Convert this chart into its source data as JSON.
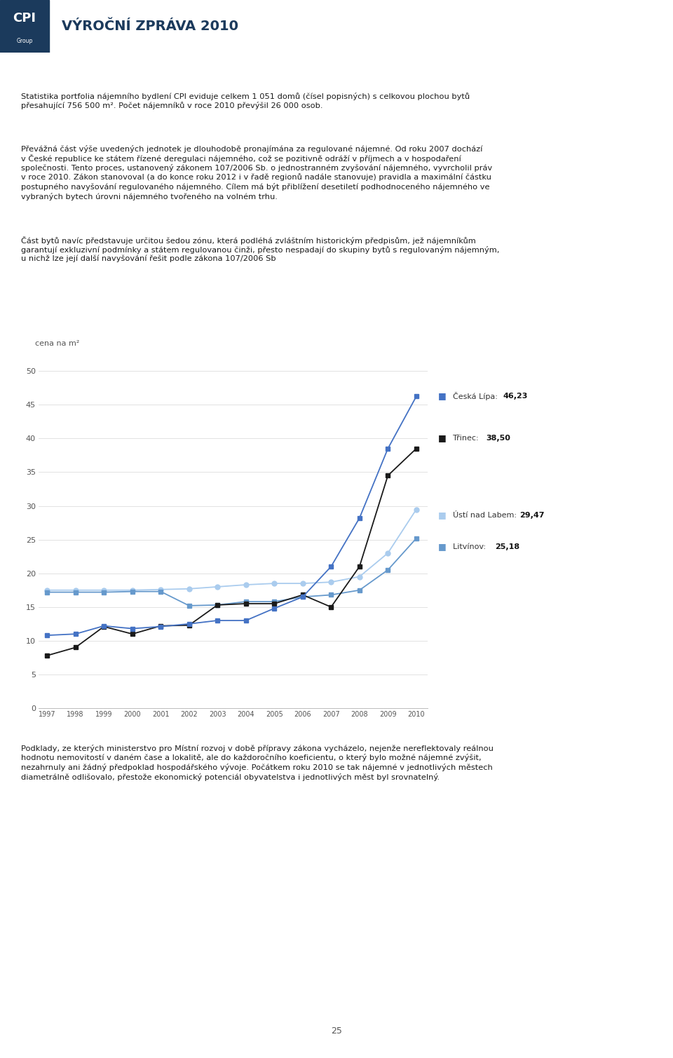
{
  "years": [
    1997,
    1998,
    1999,
    2000,
    2001,
    2002,
    2003,
    2004,
    2005,
    2006,
    2007,
    2008,
    2009,
    2010
  ],
  "ceska_lipa": [
    10.8,
    11.0,
    12.2,
    11.8,
    12.1,
    12.5,
    13.0,
    13.0,
    14.8,
    16.5,
    21.0,
    28.2,
    38.5,
    46.23
  ],
  "trinec": [
    7.8,
    9.0,
    12.1,
    11.0,
    12.2,
    12.3,
    15.3,
    15.5,
    15.5,
    16.8,
    15.0,
    21.0,
    34.5,
    38.5
  ],
  "usti_nad_labem": [
    17.5,
    17.5,
    17.5,
    17.5,
    17.6,
    17.7,
    18.0,
    18.3,
    18.5,
    18.5,
    18.7,
    19.5,
    23.0,
    29.47
  ],
  "litvinov": [
    17.2,
    17.2,
    17.2,
    17.3,
    17.3,
    15.2,
    15.3,
    15.8,
    15.8,
    16.5,
    16.8,
    17.5,
    20.5,
    25.18
  ],
  "color_ceska_lipa": "#4472C4",
  "color_trinec": "#1a1a1a",
  "color_usti": "#AACCEE",
  "color_litvinov": "#6699CC",
  "ylabel": "cena na m²",
  "ylim": [
    0,
    52
  ],
  "yticks": [
    0,
    5,
    10,
    15,
    20,
    25,
    30,
    35,
    40,
    45,
    50
  ],
  "header_bg_color": "#1B3A5C",
  "header_text": "VÝROČNÍ ZPRÁVA 2010",
  "page_number": "25",
  "label_ceska_lipa_name": "Česká Lípa: ",
  "label_ceska_lipa_val": "46,23",
  "label_trinec_name": "Třinec: ",
  "label_trinec_val": "38,50",
  "label_usti_name": "Ústí nad Labem: ",
  "label_usti_val": "29,47",
  "label_litvinov_name": "Litvínov: ",
  "label_litvinov_val": "25,18",
  "text1_line1": "Statistika portfolia nájemního bydlení CPI eviduje celkem 1 051 domů (čísel popisných) s celkovou plochou bytů",
  "text1_line2": "přesahující 756 500 m². Počet nájemníků v roce 2010 převýšil 26 000 osob.",
  "text2_line1": "Převážná část výše uvedených jednotek je dlouhodobě pronajímána za regulované nájemné. Od roku 2007 dochází",
  "text2_line2": "v České republice ke státem řízené deregulaci nájemného, což se pozitivně odráží v příjmech a v hospodaření",
  "text2_line3": "společnosti. Tento proces, ustanovený zákonem 107/2006 Sb. o jednostranném zvyšování nájemného, vyvrcholil práv",
  "text2_line4": "v roce 2010. Zákon stanovoval (a do konce roku 2012 i v řadě regionů nadále stanovuje) pravidla a maximální částku",
  "text2_line5": "postupného navyšování regulovaného nájemného. Cílem má být přiblížení desetiletí podhodnoceného nájemného ve",
  "text2_line6": "vybraných bytech úrovni nájemného tvořeného na volném trhu.",
  "text3_line1": "Část bytů navíc představuje určitou šedou zónu, která podléhá zvláštním historickým předpisům, jež nájemníkům",
  "text3_line2": "garantují exkluzivní podmínky a státem regulovanou činži, přesto nespadají do skupiny bytů s regulovaným nájemným,",
  "text3_line3": "u nichž lze její další navyšování řešit podle zákona 107/2006 Sb",
  "text4_line1": "Podklady, ze kterých ministerstvo pro Místní rozvoj v době přípravy zákona vycházelo, nejenže nereflektovaly reálnou",
  "text4_line2": "hodnotu nemovitostí v daném čase a lokalitě, ale do každoročního koeficientu, o který bylo možné nájemné zvýšit,",
  "text4_line3": "nezahrnuly ani žádný předpoklad hospodářského vývoje. Počátkem roku 2010 se tak nájemné v jednotlivých městech",
  "text4_line4": "diametrálně odlišovalo, přestože ekonomický potenciál obyvatelstva i jednotlivých měst byl srovnatelný."
}
